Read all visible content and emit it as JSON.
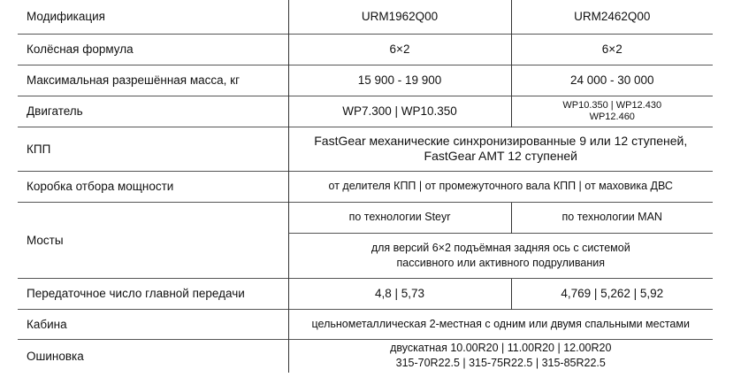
{
  "table": {
    "header": {
      "label": "Модификация",
      "col1": "URM1962Q00",
      "col2": "URM2462Q00"
    },
    "rows": {
      "wheel": {
        "label": "Колёсная формула",
        "col1": "6×2",
        "col2": "6×2"
      },
      "mass": {
        "label": "Максимальная разрешённая масса, кг",
        "col1": "15 900 - 19 900",
        "col2": "24 000 - 30 000"
      },
      "engine": {
        "label": "Двигатель",
        "col1": "WP7.300 | WP10.350",
        "col2_line1": "WP10.350 | WP12.430",
        "col2_line2": "WP12.460"
      },
      "gearbox": {
        "label": "КПП",
        "line1": "FastGear механические синхронизированные 9 или 12 ступеней,",
        "line2": "FastGear AMT 12 ступеней"
      },
      "pto": {
        "label": "Коробка отбора мощности",
        "value": "от делителя КПП | от промежуточного вала КПП | от маховика ДВС"
      },
      "axles": {
        "label": "Мосты",
        "col1": "по технологии Steyr",
        "col2": "по технологии MAN",
        "line1": "для версий 6×2 подъёмная задняя ось с системой",
        "line2": "пассивного или активного подруливания"
      },
      "ratio": {
        "label": "Передаточное число главной передачи",
        "col1": "4,8 | 5,73",
        "col2": "4,769 | 5,262 | 5,92"
      },
      "cab": {
        "label": "Кабина",
        "value": "цельнометаллическая 2-местная с одним или двумя спальными местами"
      },
      "tires": {
        "label": "Ошиновка",
        "line1": "двускатная 10.00R20 | 11.00R20 | 12.00R20",
        "line2": "315-70R22.5 | 315-75R22.5 | 315-85R22.5"
      }
    }
  }
}
